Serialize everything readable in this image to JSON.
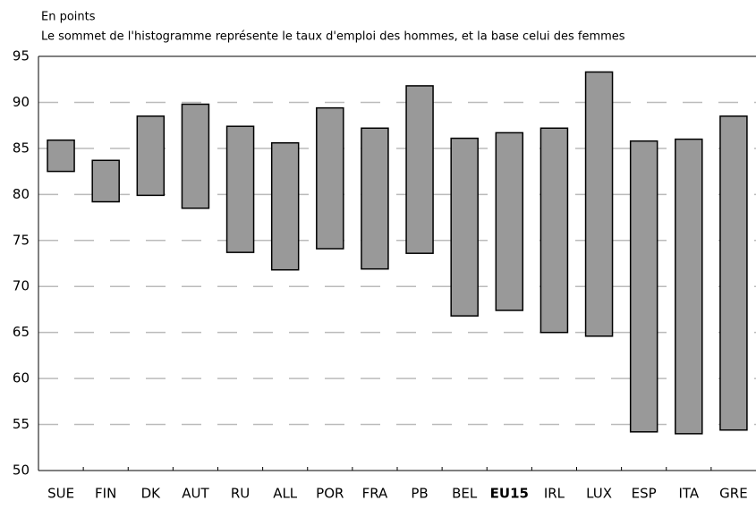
{
  "chart_data": {
    "type": "range_bar",
    "title": "En points",
    "subtitle": "Le sommet de l'histogramme représente le taux d'emploi des hommes, et la base celui des femmes",
    "categories": [
      "SUE",
      "FIN",
      "DK",
      "AUT",
      "RU",
      "ALL",
      "POR",
      "FRA",
      "PB",
      "BEL",
      "EU15",
      "IRL",
      "LUX",
      "ESP",
      "ITA",
      "GRE"
    ],
    "low": [
      82.5,
      79.2,
      79.9,
      78.5,
      73.7,
      71.8,
      74.1,
      71.9,
      73.6,
      66.8,
      67.4,
      65,
      64.6,
      54.2,
      54,
      54.4
    ],
    "high": [
      85.9,
      83.7,
      88.5,
      89.8,
      87.4,
      85.6,
      89.4,
      87.2,
      91.8,
      86.1,
      86.7,
      87.2,
      93.3,
      85.8,
      86,
      88.5
    ],
    "color": "#999999",
    "bold_category": 10,
    "ylim": [
      50,
      95
    ],
    "yticks": [
      50,
      55,
      60,
      65,
      70,
      75,
      80,
      85,
      90,
      95
    ],
    "grid": true
  }
}
